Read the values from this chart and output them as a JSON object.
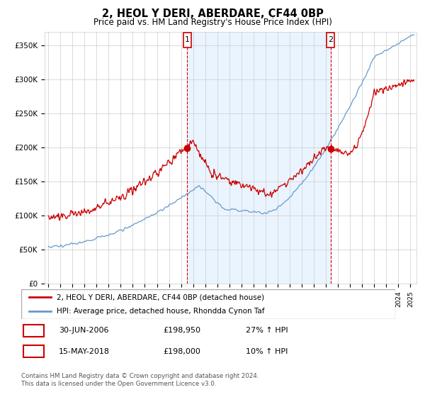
{
  "title": "2, HEOL Y DERI, ABERDARE, CF44 0BP",
  "subtitle": "Price paid vs. HM Land Registry's House Price Index (HPI)",
  "legend_line1": "2, HEOL Y DERI, ABERDARE, CF44 0BP (detached house)",
  "legend_line2": "HPI: Average price, detached house, Rhondda Cynon Taf",
  "footer": "Contains HM Land Registry data © Crown copyright and database right 2024.\nThis data is licensed under the Open Government Licence v3.0.",
  "sale1_date": "30-JUN-2006",
  "sale1_price": "£198,950",
  "sale1_hpi": "27% ↑ HPI",
  "sale2_date": "15-MAY-2018",
  "sale2_price": "£198,000",
  "sale2_hpi": "10% ↑ HPI",
  "sale1_year": 2006.5,
  "sale2_year": 2018.375,
  "sale1_price_val": 198950,
  "sale2_price_val": 198000,
  "red_color": "#cc0000",
  "blue_color": "#6699cc",
  "blue_fill_color": "#ddeeff",
  "grid_color": "#cccccc",
  "background_color": "#ffffff",
  "ylim_max": 370000,
  "xlim_start": 1994.7,
  "xlim_end": 2025.5
}
